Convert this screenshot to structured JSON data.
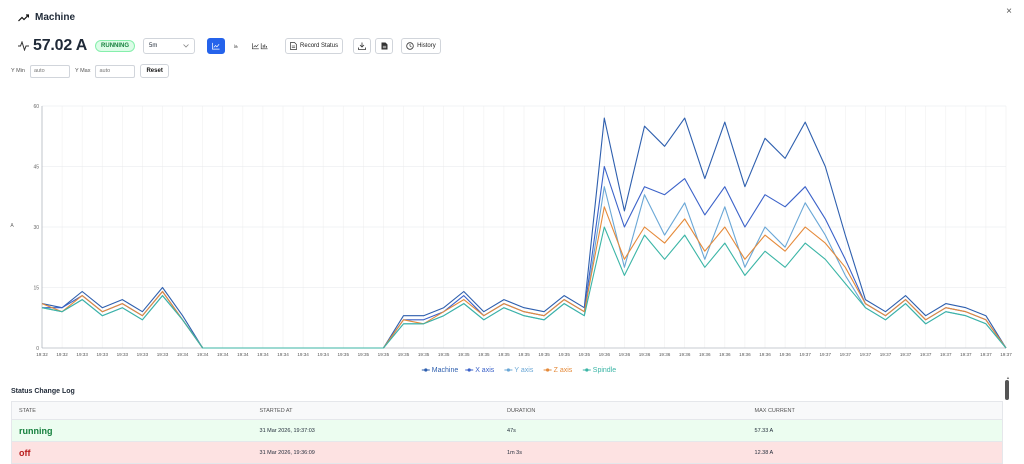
{
  "header": {
    "title": "Machine",
    "close": "×"
  },
  "toolbar": {
    "current_value": "57.02 A",
    "status": "RUNNING",
    "range_value": "5m",
    "record_status": "Record Status",
    "history": "History"
  },
  "yrange": {
    "ymin_label": "Y Min",
    "ymin_placeholder": "auto",
    "ymax_label": "Y Max",
    "ymax_placeholder": "auto",
    "reset": "Reset"
  },
  "colors": {
    "accent": "#2563eb",
    "running": "#15803d",
    "off": "#b91c1c"
  },
  "chart_data": {
    "type": "line",
    "title": "",
    "ylabel": "A",
    "ylim": [
      0,
      60
    ],
    "yticks": [
      0,
      15,
      30,
      45,
      60
    ],
    "x": [
      "19:32",
      "19:32",
      "19:33",
      "19:33",
      "19:33",
      "19:33",
      "19:33",
      "19:34",
      "19:34",
      "19:34",
      "19:34",
      "19:34",
      "19:34",
      "19:34",
      "19:34",
      "19:35",
      "19:35",
      "19:35",
      "19:35",
      "19:35",
      "19:35",
      "19:35",
      "19:35",
      "19:35",
      "19:35",
      "19:35",
      "19:35",
      "19:35",
      "19:36",
      "19:36",
      "19:36",
      "19:36",
      "19:36",
      "19:36",
      "19:36",
      "19:36",
      "19:36",
      "19:36",
      "19:37",
      "19:37",
      "19:37",
      "19:37",
      "19:37",
      "19:37",
      "19:37",
      "19:37",
      "19:37",
      "19:37",
      "19:37"
    ],
    "series": [
      {
        "name": "Machine",
        "color": "#2e5fae",
        "values": [
          11,
          10,
          14,
          10,
          12,
          9,
          15,
          8,
          0,
          0,
          0,
          0,
          0,
          0,
          0,
          0,
          0,
          0,
          8,
          8,
          10,
          14,
          9,
          12,
          10,
          9,
          13,
          10,
          57,
          34,
          55,
          50,
          57,
          42,
          56,
          40,
          52,
          47,
          56,
          45,
          28,
          12,
          9,
          13,
          8,
          11,
          10,
          8,
          0
        ]
      },
      {
        "name": "X axis",
        "color": "#3b62c9",
        "values": [
          10,
          10,
          13,
          9,
          11,
          8,
          14,
          7,
          0,
          0,
          0,
          0,
          0,
          0,
          0,
          0,
          0,
          0,
          7,
          7,
          9,
          13,
          8,
          11,
          9,
          8,
          12,
          9,
          45,
          30,
          40,
          38,
          42,
          33,
          40,
          30,
          38,
          35,
          40,
          32,
          22,
          11,
          8,
          12,
          7,
          10,
          9,
          7,
          0
        ]
      },
      {
        "name": "Y axis",
        "color": "#6aa7d6",
        "values": [
          10,
          9,
          12,
          8,
          10,
          7,
          13,
          7,
          0,
          0,
          0,
          0,
          0,
          0,
          0,
          0,
          0,
          0,
          6,
          6,
          8,
          11,
          7,
          10,
          8,
          7,
          11,
          8,
          40,
          20,
          38,
          28,
          36,
          22,
          35,
          20,
          30,
          25,
          36,
          28,
          18,
          10,
          7,
          11,
          6,
          9,
          8,
          6,
          0
        ]
      },
      {
        "name": "Z axis",
        "color": "#e58a3a",
        "values": [
          11,
          9,
          13,
          9,
          11,
          8,
          14,
          7,
          0,
          0,
          0,
          0,
          0,
          0,
          0,
          0,
          0,
          0,
          7,
          6,
          9,
          12,
          8,
          11,
          9,
          8,
          12,
          9,
          35,
          22,
          30,
          26,
          32,
          24,
          30,
          22,
          28,
          24,
          30,
          26,
          20,
          11,
          8,
          12,
          7,
          10,
          9,
          7,
          0
        ]
      },
      {
        "name": "Spindle",
        "color": "#3bb5a6",
        "values": [
          10,
          9,
          12,
          8,
          10,
          7,
          13,
          7,
          0,
          0,
          0,
          0,
          0,
          0,
          0,
          0,
          0,
          0,
          6,
          6,
          8,
          11,
          7,
          10,
          8,
          7,
          11,
          8,
          30,
          18,
          28,
          22,
          28,
          20,
          26,
          18,
          24,
          20,
          26,
          22,
          16,
          10,
          7,
          11,
          6,
          9,
          8,
          6,
          0
        ]
      }
    ]
  },
  "log": {
    "title": "Status Change Log",
    "headers": [
      "STATE",
      "STARTED AT",
      "DURATION",
      "MAX CURRENT"
    ],
    "rows": [
      {
        "state": "running",
        "started": "31 Mar 2026, 19:37:03",
        "duration": "47s",
        "max": "57.33 A"
      },
      {
        "state": "off",
        "started": "31 Mar 2026, 19:36:09",
        "duration": "1m 3s",
        "max": "12.38 A"
      }
    ]
  }
}
